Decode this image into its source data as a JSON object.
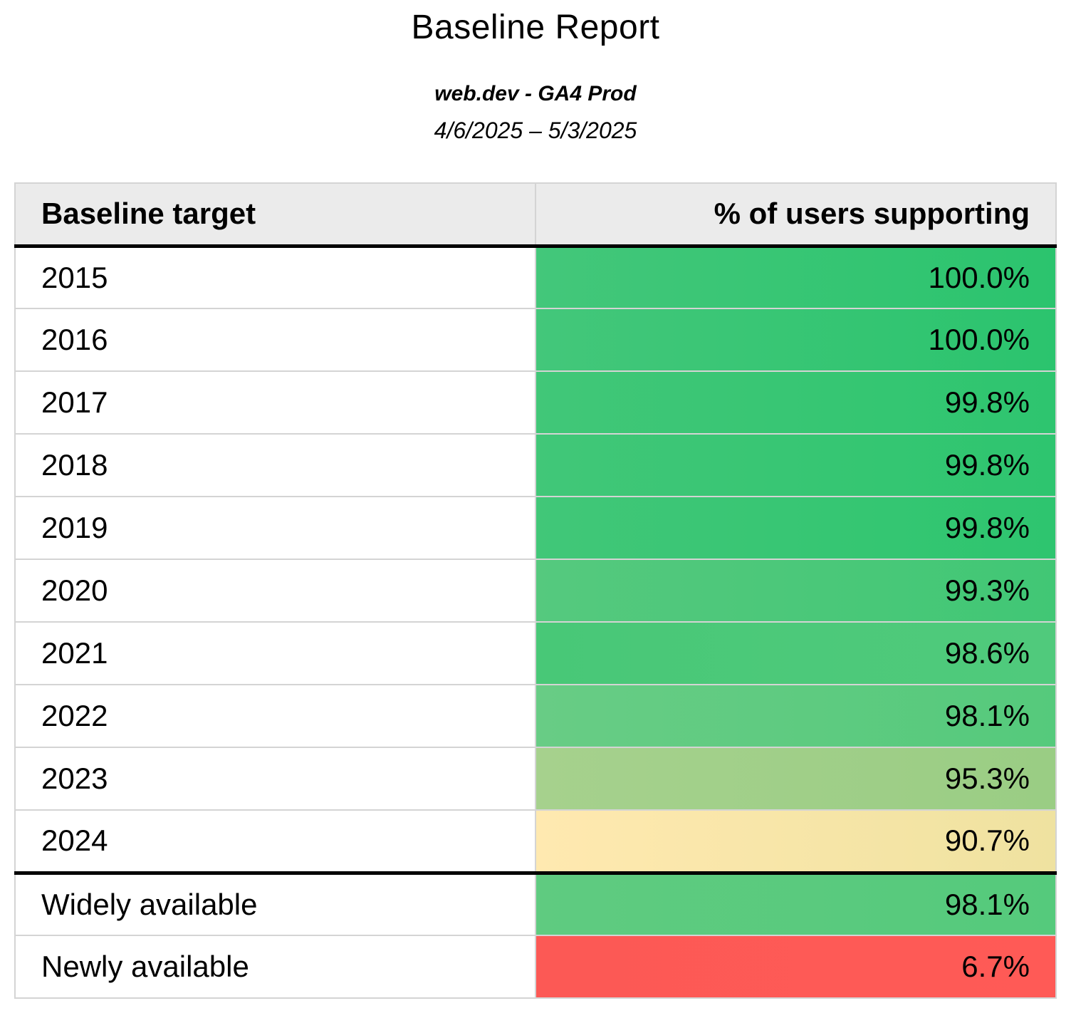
{
  "header": {
    "title": "Baseline Report",
    "subtitle": "web.dev - GA4 Prod",
    "date_range": "4/6/2025 – 5/3/2025"
  },
  "table": {
    "columns": [
      "Baseline target",
      "% of users supporting"
    ],
    "rows": [
      {
        "target": "2015",
        "value": "100.0%",
        "color_from": "#43C77A",
        "color_to": "#2BC46E",
        "section_divider": false
      },
      {
        "target": "2016",
        "value": "100.0%",
        "color_from": "#43C77A",
        "color_to": "#2BC46E",
        "section_divider": false
      },
      {
        "target": "2017",
        "value": "99.8%",
        "color_from": "#41C778",
        "color_to": "#2EC56F",
        "section_divider": false
      },
      {
        "target": "2018",
        "value": "99.8%",
        "color_from": "#41C778",
        "color_to": "#2EC56F",
        "section_divider": false
      },
      {
        "target": "2019",
        "value": "99.8%",
        "color_from": "#41C778",
        "color_to": "#2EC56F",
        "section_divider": false
      },
      {
        "target": "2020",
        "value": "99.3%",
        "color_from": "#55C97E",
        "color_to": "#41C775",
        "section_divider": false
      },
      {
        "target": "2021",
        "value": "98.6%",
        "color_from": "#48C877",
        "color_to": "#50CA7C",
        "section_divider": false
      },
      {
        "target": "2022",
        "value": "98.1%",
        "color_from": "#68CC85",
        "color_to": "#55CA7C",
        "section_divider": false
      },
      {
        "target": "2023",
        "value": "95.3%",
        "color_from": "#A6D18D",
        "color_to": "#9ACD84",
        "section_divider": false
      },
      {
        "target": "2024",
        "value": "90.7%",
        "color_from": "#FFE9B0",
        "color_to": "#EFE2A0",
        "section_divider": false
      },
      {
        "target": "Widely available",
        "value": "98.1%",
        "color_from": "#5FCB80",
        "color_to": "#55CA7C",
        "section_divider": true
      },
      {
        "target": "Newly available",
        "value": "6.7%",
        "color_from": "#FC5955",
        "color_to": "#FF5A56",
        "section_divider": false
      }
    ]
  },
  "colors": {
    "header_background": "#EBEBEB",
    "cell_border": "#D4D4D4",
    "section_border": "#000000",
    "text": "#000000",
    "page_background": "#FFFFFF"
  },
  "chart_data": {
    "type": "table",
    "title": "Baseline Report",
    "subtitle": "web.dev - GA4 Prod",
    "date_range": "4/6/2025 – 5/3/2025",
    "columns": [
      "Baseline target",
      "% of users supporting"
    ],
    "rows": [
      [
        "2015",
        100.0
      ],
      [
        "2016",
        100.0
      ],
      [
        "2017",
        99.8
      ],
      [
        "2018",
        99.8
      ],
      [
        "2019",
        99.8
      ],
      [
        "2020",
        99.3
      ],
      [
        "2021",
        98.6
      ],
      [
        "2022",
        98.1
      ],
      [
        "2023",
        95.3
      ],
      [
        "2024",
        90.7
      ],
      [
        "Widely available",
        98.1
      ],
      [
        "Newly available",
        6.7
      ]
    ],
    "value_unit": "percent",
    "color_scale": "red-yellow-green by value, red low (6.7%) to green high (100%)",
    "layout": {
      "grid": true,
      "value_column_alignment": "right",
      "sections": [
        "years 2015-2024",
        "availability summary"
      ]
    }
  }
}
